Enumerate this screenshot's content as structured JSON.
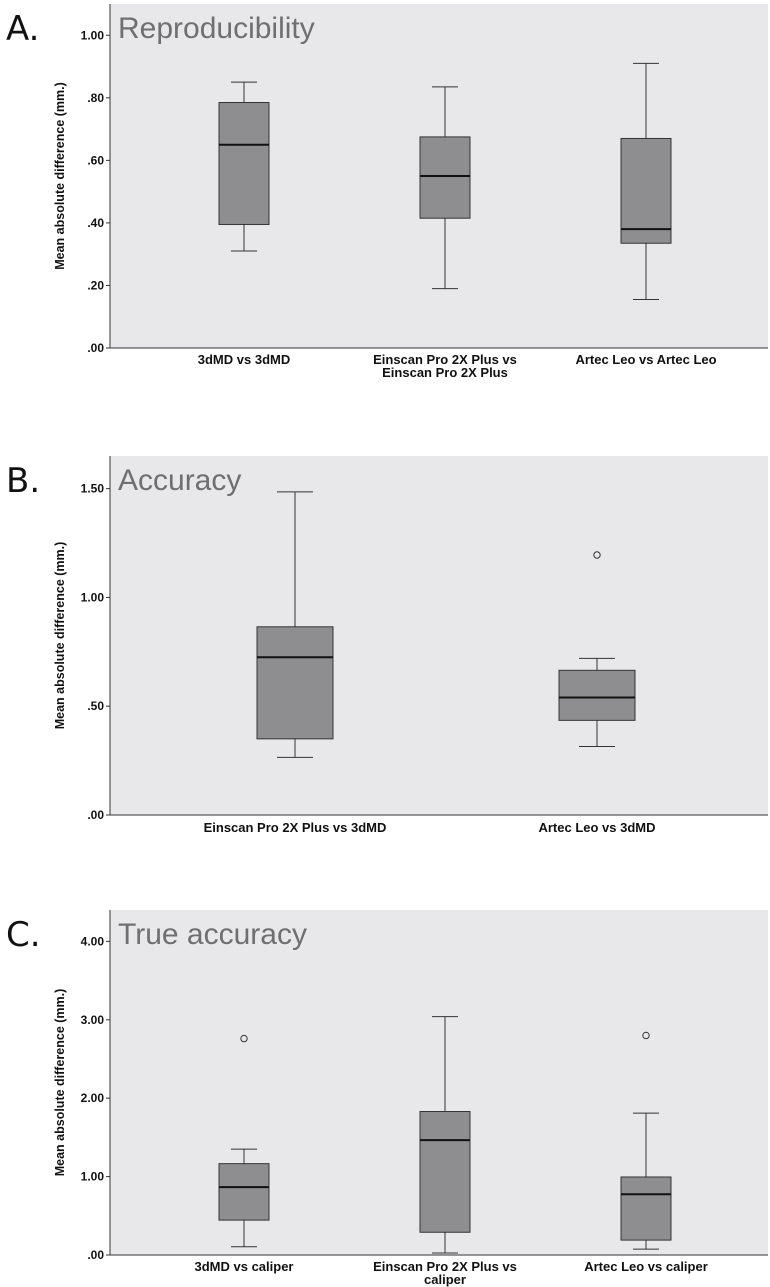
{
  "chart_data": [
    {
      "type": "box",
      "panel_letter": "A.",
      "title": "Reproducibility",
      "ylabel": "Mean absolute difference (mm.)",
      "ylim": [
        0,
        1.1
      ],
      "yticks": [
        0,
        0.2,
        0.4,
        0.6,
        0.8,
        1.0
      ],
      "ytick_labels": [
        ".00",
        ".20",
        ".40",
        ".60",
        ".80",
        "1.00"
      ],
      "categories": [
        [
          "3dMD vs 3dMD"
        ],
        [
          "Einscan Pro 2X Plus vs",
          "Einscan Pro 2X Plus"
        ],
        [
          "Artec Leo vs Artec Leo"
        ]
      ],
      "boxes": [
        {
          "whisker_low": 0.31,
          "q1": 0.395,
          "median": 0.65,
          "q3": 0.785,
          "whisker_high": 0.85,
          "outliers": []
        },
        {
          "whisker_low": 0.19,
          "q1": 0.415,
          "median": 0.55,
          "q3": 0.675,
          "whisker_high": 0.835,
          "outliers": []
        },
        {
          "whisker_low": 0.155,
          "q1": 0.335,
          "median": 0.38,
          "q3": 0.67,
          "whisker_high": 0.91,
          "outliers": []
        }
      ],
      "colors": {
        "plot_bg": "#e8e8ea",
        "box_fill": "#8e8e91",
        "stroke": "#333333"
      }
    },
    {
      "type": "box",
      "panel_letter": "B.",
      "title": "Accuracy",
      "ylabel": "Mean absolute difference (mm.)",
      "ylim": [
        0,
        1.65
      ],
      "yticks": [
        0,
        0.5,
        1.0,
        1.5
      ],
      "ytick_labels": [
        ".00",
        ".50",
        "1.00",
        "1.50"
      ],
      "categories": [
        [
          "Einscan Pro 2X Plus vs 3dMD"
        ],
        [
          "Artec Leo vs 3dMD"
        ]
      ],
      "boxes": [
        {
          "whisker_low": 0.265,
          "q1": 0.35,
          "median": 0.725,
          "q3": 0.865,
          "whisker_high": 1.485,
          "outliers": []
        },
        {
          "whisker_low": 0.315,
          "q1": 0.435,
          "median": 0.54,
          "q3": 0.665,
          "whisker_high": 0.72,
          "outliers": [
            1.195
          ]
        }
      ],
      "colors": {
        "plot_bg": "#e8e8ea",
        "box_fill": "#8e8e91",
        "stroke": "#333333"
      }
    },
    {
      "type": "box",
      "panel_letter": "C.",
      "title": "True accuracy",
      "ylabel": "Mean absolute difference (mm.)",
      "ylim": [
        0,
        4.4
      ],
      "yticks": [
        0,
        1,
        2,
        3,
        4
      ],
      "ytick_labels": [
        ".00",
        "1.00",
        "2.00",
        "3.00",
        "4.00"
      ],
      "categories": [
        [
          "3dMD vs caliper"
        ],
        [
          "Einscan Pro 2X Plus vs",
          "caliper"
        ],
        [
          "Artec Leo vs caliper"
        ]
      ],
      "boxes": [
        {
          "whisker_low": 0.105,
          "q1": 0.445,
          "median": 0.865,
          "q3": 1.165,
          "whisker_high": 1.35,
          "outliers": [
            2.76
          ]
        },
        {
          "whisker_low": 0.025,
          "q1": 0.29,
          "median": 1.465,
          "q3": 1.83,
          "whisker_high": 3.04,
          "outliers": []
        },
        {
          "whisker_low": 0.075,
          "q1": 0.19,
          "median": 0.775,
          "q3": 0.995,
          "whisker_high": 1.81,
          "outliers": [
            2.8
          ]
        }
      ],
      "colors": {
        "plot_bg": "#e8e8ea",
        "box_fill": "#8e8e91",
        "stroke": "#333333"
      }
    }
  ]
}
